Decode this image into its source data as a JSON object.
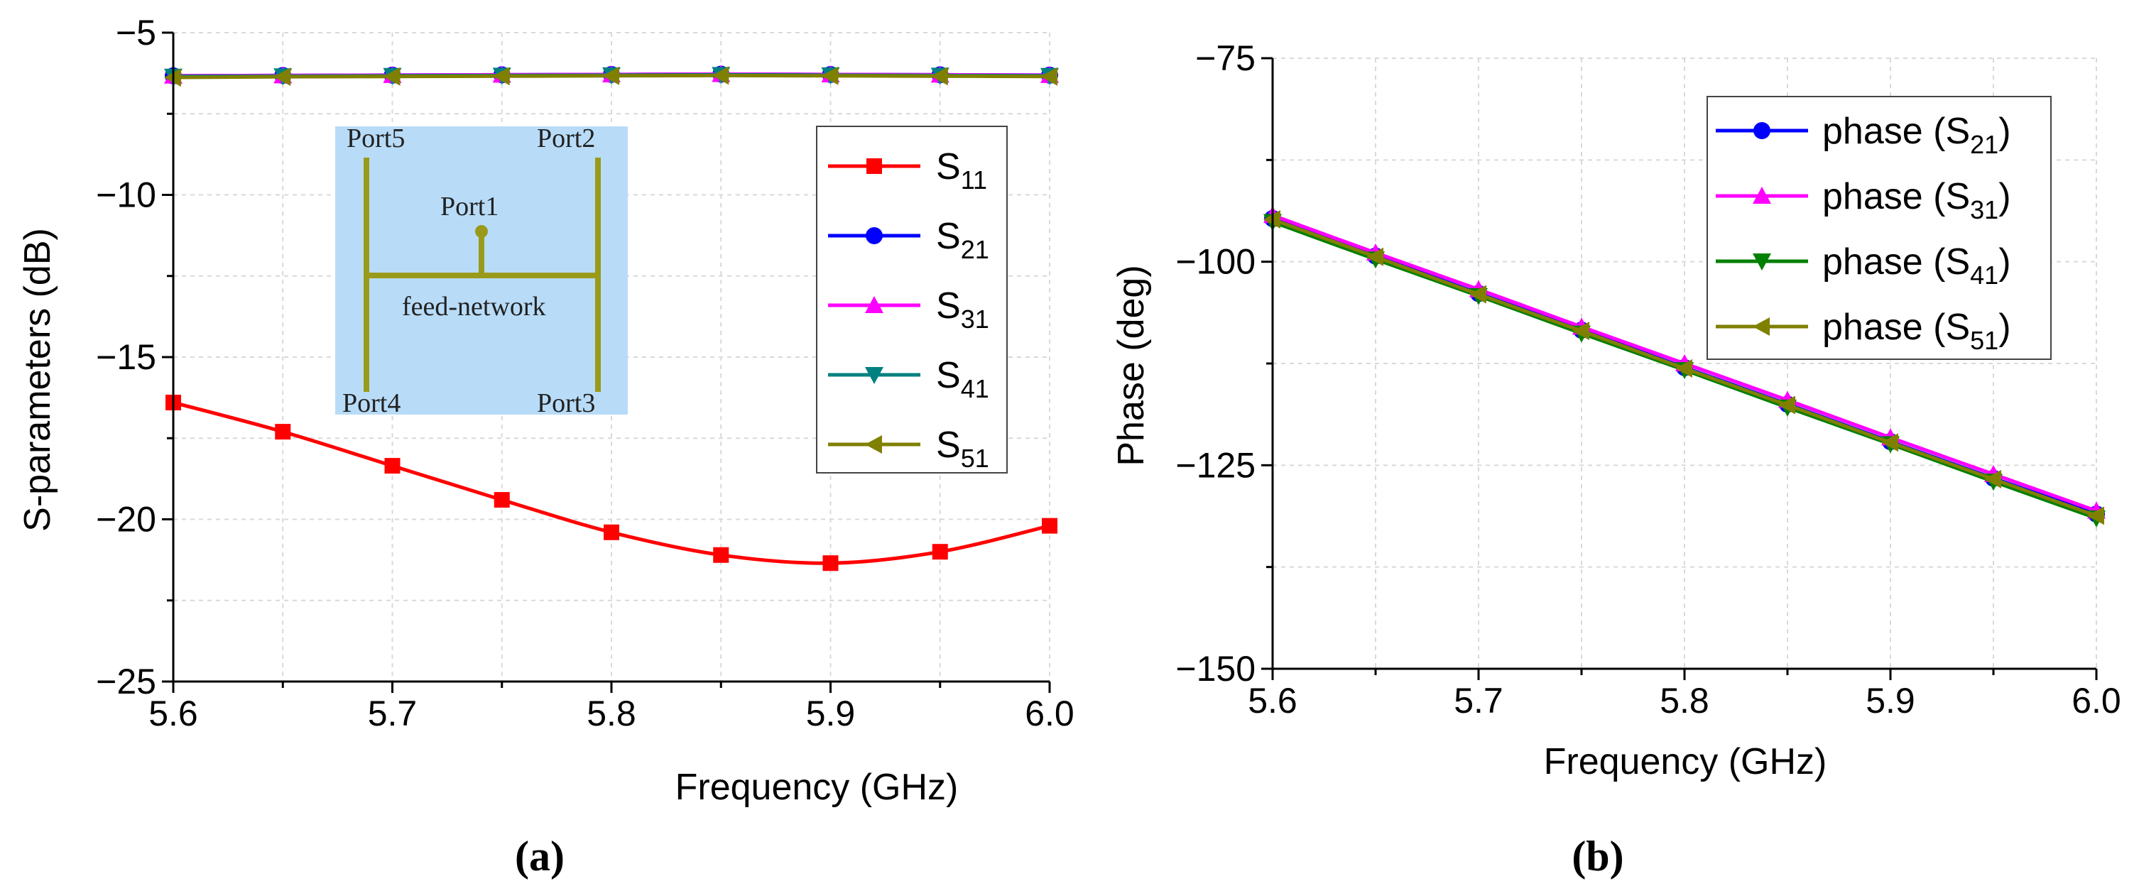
{
  "chart_data": [
    {
      "type": "line",
      "panel": "a",
      "caption": "(a)",
      "title": "",
      "xlabel": "Frequency (GHz)",
      "ylabel": "S-parameters (dB)",
      "xlim": [
        5.6,
        6.0
      ],
      "ylim": [
        -25,
        -5
      ],
      "xticks": [
        "5.6",
        "5.7",
        "5.8",
        "5.9",
        "6.0"
      ],
      "yticks": [
        "−25",
        "−20",
        "−15",
        "−10",
        "−5"
      ],
      "x": [
        5.6,
        5.65,
        5.7,
        5.75,
        5.8,
        5.85,
        5.9,
        5.95,
        6.0
      ],
      "legend_position": "right",
      "series": [
        {
          "name": "S",
          "sub": "11",
          "color": "#ff0000",
          "marker": "square",
          "values": [
            -16.4,
            -17.3,
            -18.35,
            -19.4,
            -20.4,
            -21.1,
            -21.35,
            -21.0,
            -20.2
          ]
        },
        {
          "name": "S",
          "sub": "21",
          "color": "#0000ff",
          "marker": "circle",
          "values": [
            -6.33,
            -6.32,
            -6.31,
            -6.3,
            -6.29,
            -6.28,
            -6.29,
            -6.3,
            -6.31
          ]
        },
        {
          "name": "S",
          "sub": "31",
          "color": "#ff00ff",
          "marker": "triangle-up",
          "values": [
            -6.33,
            -6.32,
            -6.31,
            -6.3,
            -6.29,
            -6.28,
            -6.29,
            -6.3,
            -6.31
          ]
        },
        {
          "name": "S",
          "sub": "41",
          "color": "#008080",
          "marker": "triangle-down",
          "values": [
            -6.35,
            -6.34,
            -6.33,
            -6.32,
            -6.31,
            -6.3,
            -6.31,
            -6.32,
            -6.33
          ]
        },
        {
          "name": "S",
          "sub": "51",
          "color": "#808000",
          "marker": "triangle-left",
          "values": [
            -6.38,
            -6.36,
            -6.35,
            -6.34,
            -6.33,
            -6.32,
            -6.33,
            -6.34,
            -6.35
          ]
        }
      ],
      "inset": {
        "label_feed": "feed-network",
        "ports": [
          "Port1",
          "Port2",
          "Port3",
          "Port4",
          "Port5"
        ],
        "background": "#b8dcf8",
        "trace_color": "#9a9a1a"
      }
    },
    {
      "type": "line",
      "panel": "b",
      "caption": "(b)",
      "title": "",
      "xlabel": "Frequency (GHz)",
      "ylabel": "Phase (deg)",
      "xlim": [
        5.6,
        6.0
      ],
      "ylim": [
        -150,
        -75
      ],
      "xticks": [
        "5.6",
        "5.7",
        "5.8",
        "5.9",
        "6.0"
      ],
      "yticks": [
        "−150",
        "−125",
        "−100",
        "−75"
      ],
      "x": [
        5.6,
        5.65,
        5.7,
        5.75,
        5.8,
        5.85,
        5.9,
        5.95,
        6.0
      ],
      "legend_position": "top-right",
      "series": [
        {
          "name": "phase (S",
          "sub": "21",
          "suffix": ")",
          "color": "#0000ff",
          "marker": "circle",
          "values": [
            -94.7,
            -99.3,
            -103.9,
            -108.4,
            -113.0,
            -117.5,
            -122.1,
            -126.6,
            -131.0
          ]
        },
        {
          "name": "phase (S",
          "sub": "31",
          "suffix": ")",
          "color": "#ff00ff",
          "marker": "triangle-up",
          "values": [
            -94.3,
            -98.9,
            -103.4,
            -108.0,
            -112.5,
            -117.0,
            -121.6,
            -126.1,
            -130.6
          ]
        },
        {
          "name": "phase (S",
          "sub": "41",
          "suffix": ")",
          "color": "#008000",
          "marker": "triangle-down",
          "values": [
            -95.1,
            -99.7,
            -104.2,
            -108.8,
            -113.3,
            -117.9,
            -122.4,
            -127.0,
            -131.5
          ]
        },
        {
          "name": "phase (S",
          "sub": "51",
          "suffix": ")",
          "color": "#808000",
          "marker": "triangle-left",
          "values": [
            -94.8,
            -99.4,
            -104.0,
            -108.5,
            -113.1,
            -117.6,
            -122.2,
            -126.7,
            -131.2
          ]
        }
      ]
    }
  ]
}
